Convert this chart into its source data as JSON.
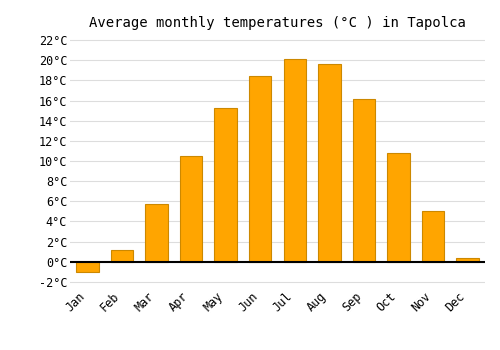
{
  "title": "Average monthly temperatures (°C ) in Tapolca",
  "months": [
    "Jan",
    "Feb",
    "Mar",
    "Apr",
    "May",
    "Jun",
    "Jul",
    "Aug",
    "Sep",
    "Oct",
    "Nov",
    "Dec"
  ],
  "values": [
    -1.0,
    1.2,
    5.7,
    10.5,
    15.3,
    18.4,
    20.1,
    19.6,
    16.2,
    10.8,
    5.0,
    0.4
  ],
  "bar_color": "#FFA500",
  "bar_edge_color": "#CC8800",
  "background_color": "#ffffff",
  "grid_color": "#dddddd",
  "ylim": [
    -2.5,
    22.5
  ],
  "yticks": [
    -2,
    0,
    2,
    4,
    6,
    8,
    10,
    12,
    14,
    16,
    18,
    20,
    22
  ],
  "title_fontsize": 10,
  "tick_fontsize": 8.5,
  "font_family": "monospace",
  "bar_width": 0.65
}
